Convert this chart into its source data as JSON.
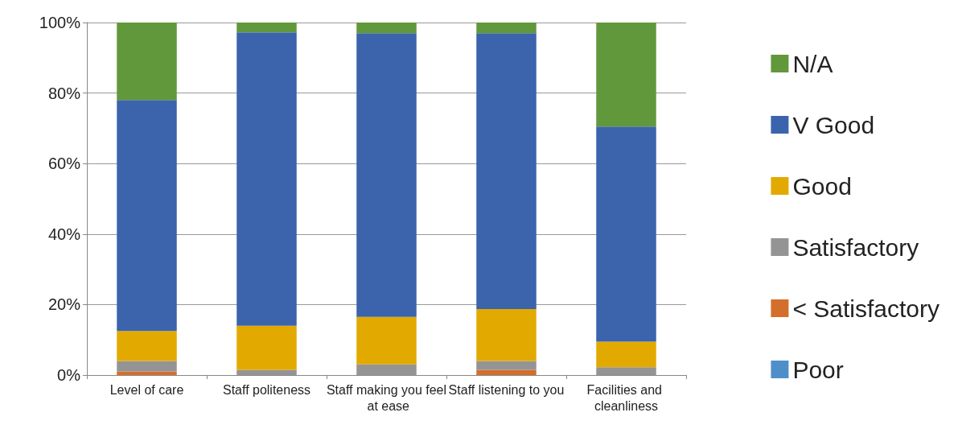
{
  "chart_data": {
    "type": "bar",
    "stacked": true,
    "categories": [
      "Level of care",
      "Staff politeness",
      "Staff making you feel at ease",
      "Staff listening to you",
      "Facilities and cleanliness"
    ],
    "series": [
      {
        "name": "Poor",
        "color": "#4e8fca",
        "values": [
          0,
          0,
          0,
          0,
          0
        ]
      },
      {
        "name": "< Satisfactory",
        "color": "#d46f2b",
        "values": [
          1,
          0,
          0,
          1.5,
          0
        ]
      },
      {
        "name": "Satisfactory",
        "color": "#949494",
        "values": [
          3,
          1.5,
          3,
          2.5,
          2.2
        ]
      },
      {
        "name": "Good",
        "color": "#e2aa00",
        "values": [
          8.5,
          12.5,
          13.5,
          14.7,
          7.3
        ]
      },
      {
        "name": "V Good",
        "color": "#3b64ad",
        "values": [
          65.5,
          83.2,
          80.5,
          78.3,
          61
        ]
      },
      {
        "name": "N/A",
        "color": "#61983c",
        "values": [
          22,
          2.8,
          3,
          3,
          29.5
        ]
      }
    ],
    "ylim": [
      0,
      100
    ],
    "yticks": [
      {
        "value": 0,
        "label": "0%"
      },
      {
        "value": 20,
        "label": "20%"
      },
      {
        "value": 40,
        "label": "40%"
      },
      {
        "value": 60,
        "label": "60%"
      },
      {
        "value": 80,
        "label": "80%"
      },
      {
        "value": 100,
        "label": "100%"
      }
    ],
    "grid": "y",
    "legend": "right"
  }
}
